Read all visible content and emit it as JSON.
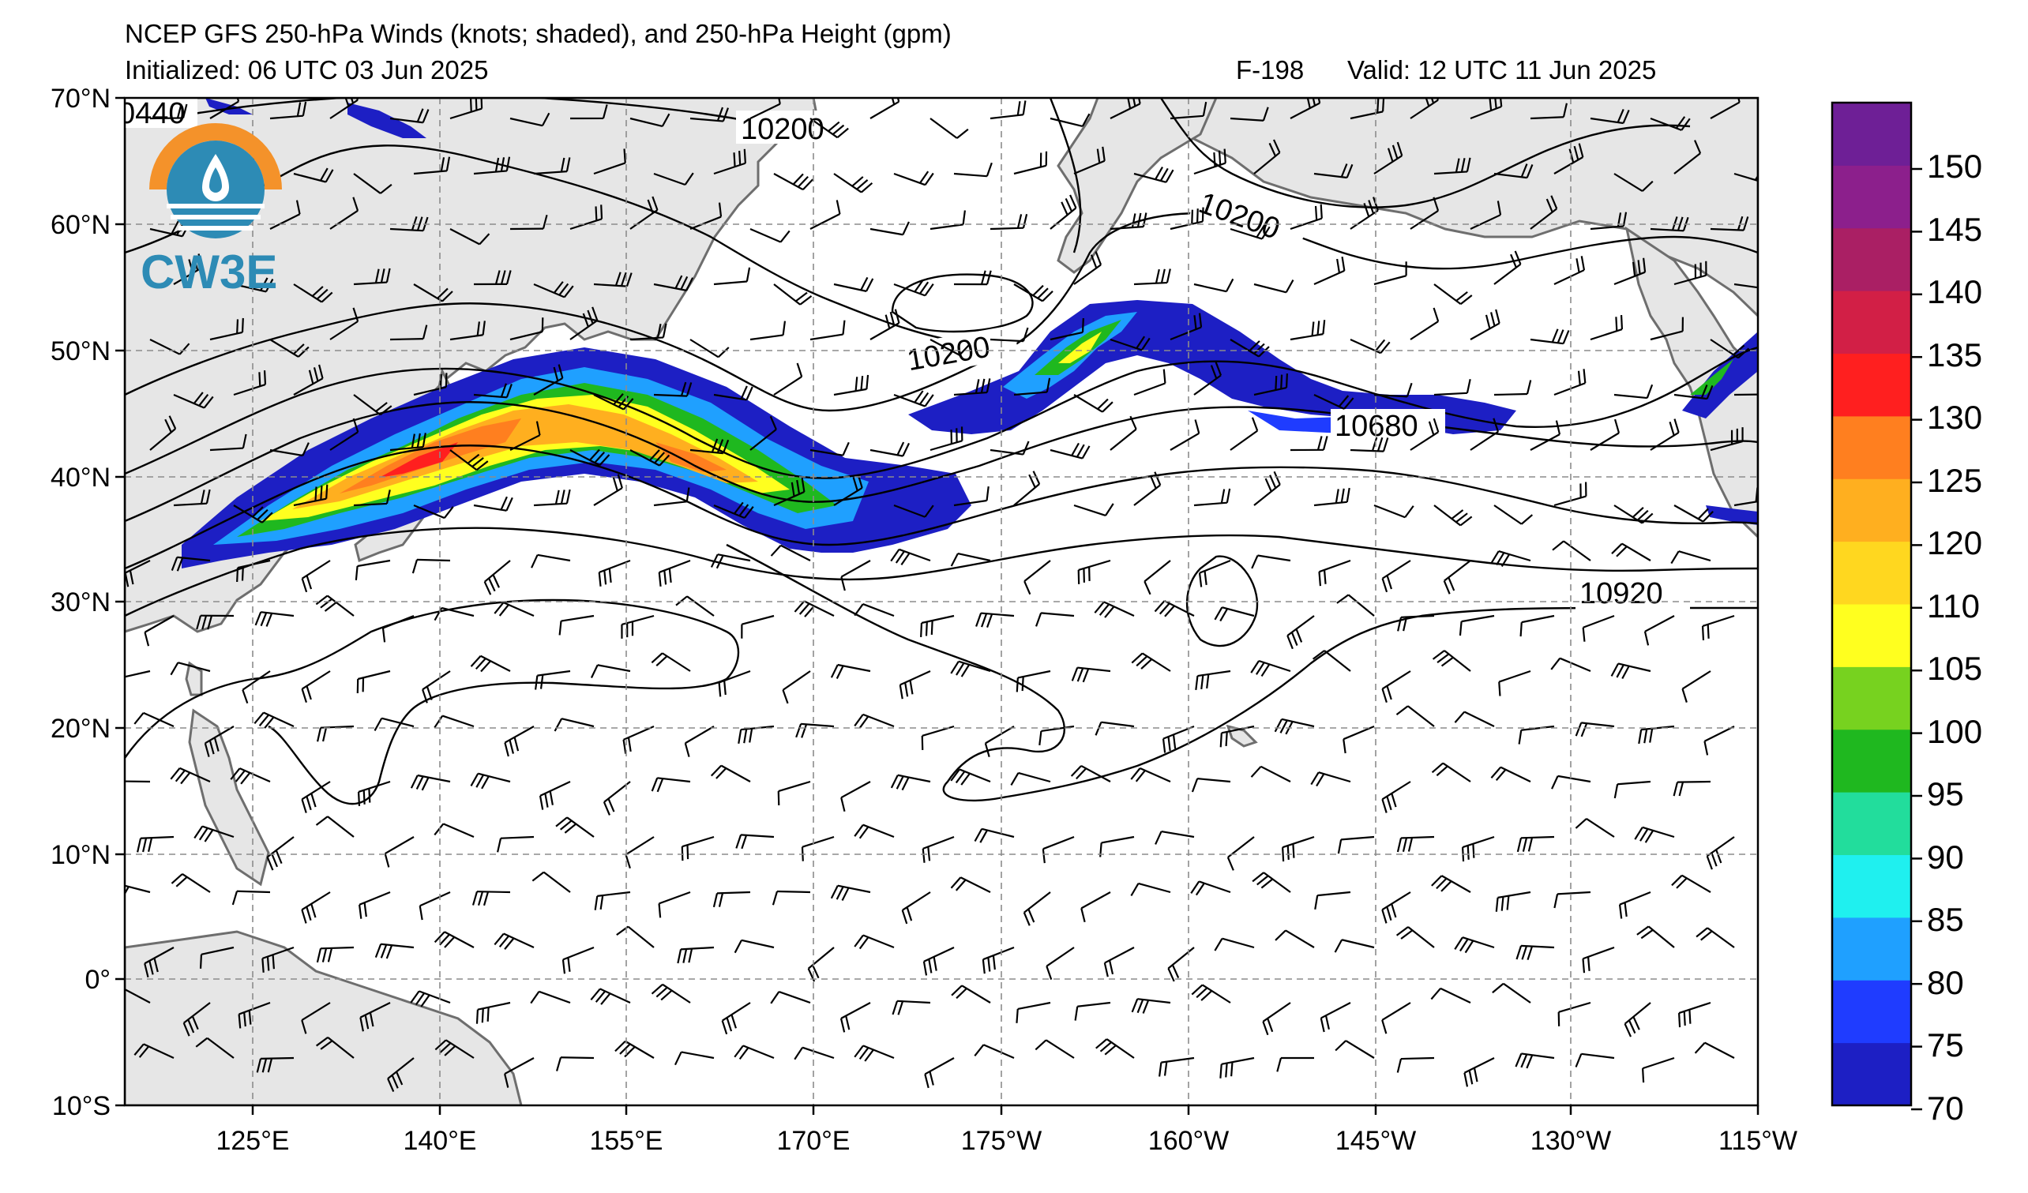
{
  "header": {
    "title": "NCEP GFS 250-hPa Winds (knots; shaded), and 250-hPa Height (gpm)",
    "initialized": "Initialized: 06 UTC 03 Jun 2025",
    "forecast_hour": "F-198",
    "valid": "Valid: 12 UTC 11 Jun 2025"
  },
  "logo": {
    "text": "CW3E"
  },
  "map": {
    "lat_labels": [
      "70°N",
      "60°N",
      "50°N",
      "40°N",
      "30°N",
      "20°N",
      "10°N",
      "0°",
      "10°S"
    ],
    "lon_labels": [
      "125°E",
      "140°E",
      "155°E",
      "170°E",
      "175°W",
      "160°W",
      "145°W",
      "130°W",
      "115°W"
    ],
    "contour_labels": [
      "0440",
      "10200",
      "10200",
      "10200",
      "10680",
      "10920"
    ]
  },
  "colorbar": {
    "labels": [
      "150",
      "145",
      "140",
      "135",
      "130",
      "125",
      "120",
      "110",
      "105",
      "100",
      "95",
      "90",
      "85",
      "80",
      "75",
      "70"
    ],
    "colors": [
      "#1d1fc4",
      "#1f3cff",
      "#1fa0ff",
      "#1ff0ef",
      "#22dd9c",
      "#1fb81f",
      "#77d21f",
      "#ffff1f",
      "#ffd71f",
      "#ffaf1f",
      "#ff7f1f",
      "#ff1f1f",
      "#d21f46",
      "#aa1f64",
      "#8c1f8c",
      "#6e1f96"
    ],
    "unit_note": ""
  }
}
